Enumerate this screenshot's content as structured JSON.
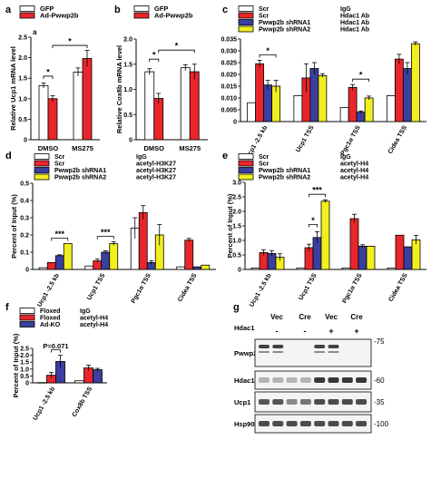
{
  "colors": {
    "white": "#ffffff",
    "red": "#e8262b",
    "blue": "#3a3fa0",
    "yellow": "#f2ef1e",
    "axis": "#000000",
    "blot_bg": "#f4f4f4",
    "band": "#222222"
  },
  "chart_data": [
    {
      "panel": "a",
      "type": "bar",
      "title": "",
      "ylabel": "Relative Ucp1 mRNA level",
      "categories": [
        "DMSO",
        "MS275"
      ],
      "ylim": [
        0,
        2.5
      ],
      "yticks": [
        "0",
        "0.5",
        "1.0",
        "1.5",
        "2.0",
        "2.5"
      ],
      "legend": [
        "GFP",
        "Ad-Pwwp2b"
      ],
      "series": [
        {
          "name": "GFP",
          "color": "white",
          "values": [
            1.32,
            1.65
          ],
          "errors": [
            0.06,
            0.1
          ]
        },
        {
          "name": "Ad-Pwwp2b",
          "color": "red",
          "values": [
            1.0,
            1.98
          ],
          "errors": [
            0.07,
            0.2
          ]
        }
      ],
      "annotations": [
        {
          "text": "*",
          "from": [
            0,
            0
          ],
          "to": [
            0,
            1
          ],
          "y": 1.55
        },
        {
          "text": "*",
          "from": [
            0,
            1
          ],
          "to": [
            1,
            1
          ],
          "y": 2.3
        },
        {
          "text": "a"
        }
      ]
    },
    {
      "panel": "b",
      "type": "bar",
      "title": "",
      "ylabel": "Relative Cox8b mRNA level",
      "categories": [
        "DMSO",
        "MS275"
      ],
      "ylim": [
        0,
        2.0
      ],
      "yticks": [
        "0",
        "0.5",
        "1.0",
        "1.5",
        "2.0"
      ],
      "legend": [
        "GFP",
        "Ad-Pwwp2b"
      ],
      "series": [
        {
          "name": "GFP",
          "color": "white",
          "values": [
            1.35,
            1.43
          ],
          "errors": [
            0.06,
            0.06
          ]
        },
        {
          "name": "Ad-Pwwp2b",
          "color": "red",
          "values": [
            0.82,
            1.35
          ],
          "errors": [
            0.1,
            0.15
          ]
        }
      ],
      "annotations": [
        {
          "text": "*",
          "from": [
            0,
            0
          ],
          "to": [
            0,
            1
          ],
          "y": 1.6
        },
        {
          "text": "*",
          "from": [
            0,
            1
          ],
          "to": [
            1,
            1
          ],
          "y": 1.78
        }
      ]
    },
    {
      "panel": "c",
      "type": "bar",
      "ylabel": "",
      "ylim": [
        0,
        0.035
      ],
      "yticks": [
        "0",
        "0.005",
        "0.010",
        "0.015",
        "0.020",
        "0.025",
        "0.030",
        "0.035"
      ],
      "categories": [
        "Ucp1 -2.5 kb",
        "Ucp1 TSS",
        "Pgc1α TSS",
        "Cidea TSS"
      ],
      "legend": [
        [
          "Scr",
          "IgG"
        ],
        [
          "Scr",
          "Hdac1 Ab"
        ],
        [
          "Pwwp2b shRNA1",
          "Hdac1 Ab"
        ],
        [
          "Pwwp2b shRNA2",
          "Hdac1 Ab"
        ]
      ],
      "series": [
        {
          "name": "Scr IgG",
          "color": "white",
          "values": [
            0.008,
            0.011,
            0.006,
            0.011
          ],
          "errors": [
            0,
            0,
            0,
            0
          ]
        },
        {
          "name": "Scr Hdac1 Ab",
          "color": "red",
          "values": [
            0.0245,
            0.0185,
            0.0145,
            0.0265
          ],
          "errors": [
            0.0015,
            0.006,
            0.0012,
            0.002
          ]
        },
        {
          "name": "Pwwp2b shRNA1 Hdac1 Ab",
          "color": "blue",
          "values": [
            0.0155,
            0.0225,
            0.004,
            0.0225
          ],
          "errors": [
            0.002,
            0.0025,
            0.0005,
            0.0025
          ]
        },
        {
          "name": "Pwwp2b shRNA2 Hdac1 Ab",
          "color": "yellow",
          "values": [
            0.015,
            0.0195,
            0.01,
            0.033
          ],
          "errors": [
            0.0025,
            0.0008,
            0.0008,
            0.0008
          ]
        }
      ],
      "annotations": [
        {
          "text": "*",
          "group": 0,
          "from": 1,
          "to": 3
        },
        {
          "text": "*",
          "group": 2,
          "from": 1,
          "to": 3
        }
      ]
    },
    {
      "panel": "d",
      "type": "bar",
      "ylabel": "Percent of Input (%)",
      "ylim": [
        0,
        0.5
      ],
      "yticks": [
        "0",
        "0.1",
        "0.2",
        "0.3",
        "0.4",
        "0.5"
      ],
      "categories": [
        "Ucp1 -2.5 kb",
        "Ucp1 TSS",
        "Pgc1α TSS",
        "Cidea TSS"
      ],
      "legend": [
        [
          "Scr",
          "IgG"
        ],
        [
          "Scr",
          "acetyl-H3K27"
        ],
        [
          "Pwwp2b shRNA1",
          "acetyl-H3K27"
        ],
        [
          "Pwwp2b shRNA2",
          "acetyl-H3K27"
        ]
      ],
      "series": [
        {
          "name": "Scr IgG",
          "color": "white",
          "values": [
            0.01,
            0.02,
            0.24,
            0.015
          ],
          "errors": [
            0,
            0,
            0.06,
            0
          ]
        },
        {
          "name": "Scr acetyl-H3K27",
          "color": "red",
          "values": [
            0.04,
            0.05,
            0.33,
            0.17
          ],
          "errors": [
            0,
            0.01,
            0.04,
            0.01
          ]
        },
        {
          "name": "Pwwp2b shRNA1 acetyl-H3K27",
          "color": "blue",
          "values": [
            0.08,
            0.1,
            0.04,
            0.015
          ],
          "errors": [
            0.005,
            0.008,
            0.01,
            0
          ]
        },
        {
          "name": "Pwwp2b shRNA2 acetyl-H3K27",
          "color": "yellow",
          "values": [
            0.15,
            0.15,
            0.2,
            0.025
          ],
          "errors": [
            0,
            0.01,
            0.06,
            0
          ]
        }
      ],
      "annotations": [
        {
          "text": "***",
          "group": 0,
          "from": 1,
          "to": 3
        },
        {
          "text": "***",
          "group": 1,
          "from": 1,
          "to": 3
        }
      ]
    },
    {
      "panel": "e",
      "type": "bar",
      "ylabel": "Percent of Input (%)",
      "ylim": [
        0,
        3.0
      ],
      "yticks": [
        "0",
        "0.5",
        "1.0",
        "1.5",
        "2.0",
        "2.5",
        "3.0"
      ],
      "categories": [
        "Ucp1 -2.5 kb",
        "Ucp1 TSS",
        "Pgc1α TSS",
        "Cidea TSS"
      ],
      "legend": [
        [
          "Scr",
          "IgG"
        ],
        [
          "Scr",
          "acetyl-H4"
        ],
        [
          "Pwwp2b shRNA1",
          "acetyl-H4"
        ],
        [
          "Pwwp2b shRNA2",
          "acetyl-H4"
        ]
      ],
      "series": [
        {
          "name": "Scr IgG",
          "color": "white",
          "values": [
            0.05,
            0.05,
            0.05,
            0.05
          ],
          "errors": [
            0,
            0,
            0,
            0
          ]
        },
        {
          "name": "Scr acetyl-H4",
          "color": "red",
          "values": [
            0.58,
            0.75,
            1.75,
            1.18
          ],
          "errors": [
            0.1,
            0.12,
            0.15,
            0
          ]
        },
        {
          "name": "Pwwp2b shRNA1 acetyl-H4",
          "color": "blue",
          "values": [
            0.55,
            1.1,
            0.8,
            0.78
          ],
          "errors": [
            0.1,
            0.2,
            0.05,
            0
          ]
        },
        {
          "name": "Pwwp2b shRNA2 acetyl-H4",
          "color": "yellow",
          "values": [
            0.42,
            2.35,
            0.8,
            1.02
          ],
          "errors": [
            0.12,
            0.05,
            0,
            0.15
          ]
        }
      ],
      "annotations": [
        {
          "text": "*",
          "group": 1,
          "from": 1,
          "to": 2
        },
        {
          "text": "***",
          "group": 1,
          "from": 1,
          "to": 3
        }
      ]
    },
    {
      "panel": "f",
      "type": "bar",
      "ylabel": "Percent of Input (%)",
      "ylim": [
        0,
        2.5
      ],
      "yticks": [
        "0",
        "0.5",
        "1.0",
        "1.5",
        "2.0",
        "2.5"
      ],
      "categories": [
        "Ucp1 -2.5 kb",
        "Cox8b TSS"
      ],
      "legend": [
        [
          "Floxed",
          "IgG"
        ],
        [
          "Floxed",
          "acetyl-H4"
        ],
        [
          "Ad-KO",
          "acetyl-H4"
        ]
      ],
      "series": [
        {
          "name": "Floxed IgG",
          "color": "white",
          "values": [
            0.02,
            0.15
          ],
          "errors": [
            0,
            0
          ]
        },
        {
          "name": "Floxed acetyl-H4",
          "color": "red",
          "values": [
            0.55,
            1.08
          ],
          "errors": [
            0.2,
            0.2
          ]
        },
        {
          "name": "Ad-KO acetyl-H4",
          "color": "blue",
          "values": [
            1.55,
            0.95
          ],
          "errors": [
            0.45,
            0.1
          ]
        }
      ],
      "annotations": [
        {
          "text": "P=0.071",
          "group": 0,
          "from": 1,
          "to": 2
        }
      ]
    }
  ],
  "blot": {
    "panel": "g",
    "columns": [
      "Vec",
      "Cre",
      "Vec",
      "Cre"
    ],
    "hdac1_row_label": "Hdac1",
    "hdac1_status": [
      "-",
      "-",
      "+",
      "+"
    ],
    "rows": [
      "Pwwp2b",
      "Hdac1",
      "Ucp1",
      "Hsp90"
    ],
    "markers": [
      "75",
      "60",
      "35",
      "100"
    ]
  },
  "panel_letters": [
    "a",
    "b",
    "c",
    "d",
    "e",
    "f",
    "g"
  ]
}
